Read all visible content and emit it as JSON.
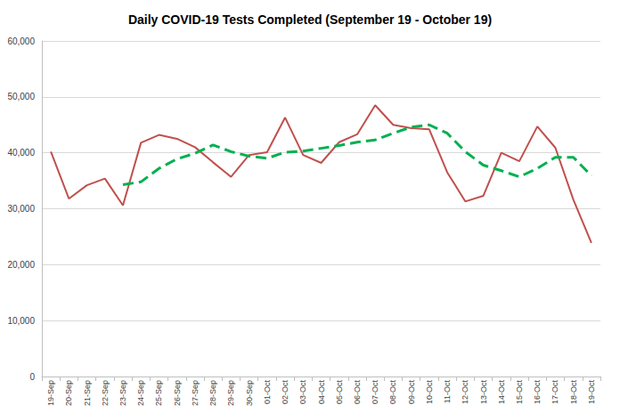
{
  "chart_data": {
    "type": "line",
    "title": "Daily COVID-19 Tests Completed (September 19 - October 19)",
    "categories": [
      "19-Sep",
      "20-Sep",
      "21-Sep",
      "22-Sep",
      "23-Sep",
      "24-Sep",
      "25-Sep",
      "26-Sep",
      "27-Sep",
      "28-Sep",
      "29-Sep",
      "30-Sep",
      "01-Oct",
      "02-Oct",
      "03-Oct",
      "04-Oct",
      "05-Oct",
      "06-Oct",
      "07-Oct",
      "08-Oct",
      "09-Oct",
      "10-Oct",
      "11-Oct",
      "12-Oct",
      "13-Oct",
      "14-Oct",
      "15-Oct",
      "16-Oct",
      "17-Oct",
      "18-Oct",
      "19-Oct"
    ],
    "series": [
      {
        "color": "#c0504d",
        "line_style": "solid",
        "marker": "none",
        "values": [
          40200,
          31800,
          34200,
          35400,
          30600,
          41800,
          43200,
          42500,
          41000,
          38300,
          35700,
          39600,
          40100,
          46300,
          39600,
          38200,
          41900,
          43300,
          48500,
          45000,
          44400,
          44200,
          36500,
          31300,
          32300,
          40000,
          38500,
          44700,
          40900,
          31600,
          23900
        ]
      },
      {
        "color": "#00b050",
        "line_style": "dashed",
        "marker": "none",
        "values": [
          null,
          null,
          null,
          null,
          34300,
          34800,
          37200,
          38900,
          39900,
          41400,
          40200,
          39400,
          39000,
          40100,
          40300,
          40800,
          41300,
          41900,
          42300,
          43500,
          44600,
          45000,
          43500,
          40200,
          37800,
          36800,
          35700,
          37200,
          39200,
          39200,
          35900
        ]
      }
    ],
    "ylim": [
      0,
      60000
    ],
    "yticks": [
      0,
      {
        "value": 10000,
        "label": "10,000"
      },
      {
        "value": 20000,
        "label": "20,000"
      },
      {
        "value": 30000,
        "label": "30,000"
      },
      {
        "value": 40000,
        "label": "40,000"
      },
      {
        "value": 50000,
        "label": "50,000"
      },
      {
        "value": 60000,
        "label": "60,000"
      }
    ],
    "grid": true
  }
}
